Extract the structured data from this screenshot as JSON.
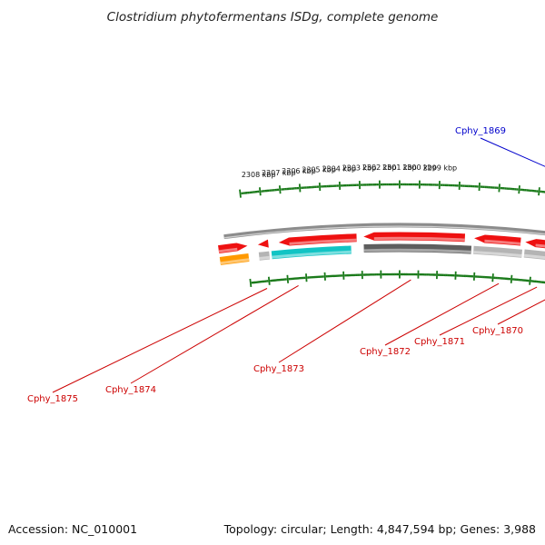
{
  "title": "Clostridium phytofermentans ISDg, complete genome",
  "accession": "Accession: NC_010001",
  "topology": "Topology: circular; Length: 4,847,594 bp; Genes: 3,988",
  "colors": {
    "tick": "#1a7a1a",
    "backbone": "#8c8c8c",
    "label_red": "#cc0000",
    "label_blue": "#0000cc",
    "gene_red": "#ee1111",
    "gene_gray": "#b4b4b4",
    "gene_darkgray": "#5e5e5e",
    "gene_cyan": "#11c4c4",
    "gene_orange": "#ff9900",
    "gene_blue": "#1111ee",
    "gene_purple": "#4a3a8c"
  },
  "kbp_labels": [
    "2308 kbp",
    "2307 kbp",
    "2306 kbp",
    "2305 kbp",
    "2304 kbp",
    "2303 kbp",
    "2302 kbp",
    "2301 kbp",
    "2300 kbp",
    "2299 kbp"
  ],
  "gene_labels": [
    {
      "text": "Cphy_1875",
      "color": "red"
    },
    {
      "text": "Cphy_1874",
      "color": "red"
    },
    {
      "text": "Cphy_1873",
      "color": "red"
    },
    {
      "text": "Cphy_1872",
      "color": "red"
    },
    {
      "text": "Cphy_1871",
      "color": "red"
    },
    {
      "text": "Cphy_1870",
      "color": "red"
    },
    {
      "text": "Cphy_1869",
      "color": "blue"
    }
  ]
}
